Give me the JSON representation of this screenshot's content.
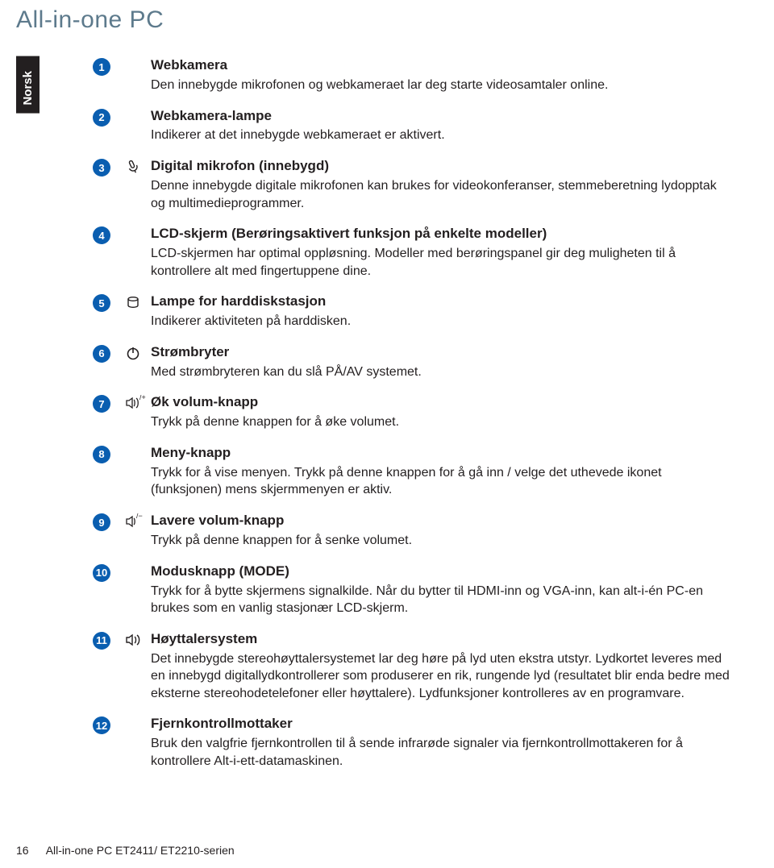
{
  "brand": "All-in-one PC",
  "side_tab": "Norsk",
  "accent_color": "#0a5eb0",
  "brand_color": "#5d7a8c",
  "items": [
    {
      "num": "1",
      "icon": "",
      "title": "Webkamera",
      "desc": "Den innebygde mikrofonen og webkameraet lar deg starte videosamtaler online."
    },
    {
      "num": "2",
      "icon": "",
      "title": "Webkamera-lampe",
      "desc": "Indikerer at det innebygde webkameraet er aktivert."
    },
    {
      "num": "3",
      "icon": "mic",
      "title": "Digital mikrofon (innebygd)",
      "desc": "Denne innebygde digitale mikrofonen kan brukes for videokonferanser, stemmeberetning lydopptak og multimedieprogrammer."
    },
    {
      "num": "4",
      "icon": "",
      "title": "LCD-skjerm (Berøringsaktivert funksjon på enkelte modeller)",
      "desc": "LCD-skjermen har optimal oppløsning. Modeller med berøringspanel gir deg muligheten til å kontrollere alt med fingertuppene dine."
    },
    {
      "num": "5",
      "icon": "hdd",
      "title": "Lampe for harddiskstasjon",
      "desc": "Indikerer aktiviteten på harddisken."
    },
    {
      "num": "6",
      "icon": "power",
      "title": "Strømbryter",
      "desc": "Med strømbryteren kan du slå PÅ/AV systemet."
    },
    {
      "num": "7",
      "icon": "volup",
      "title": "Øk volum-knapp",
      "desc": "Trykk på denne knappen for å øke volumet."
    },
    {
      "num": "8",
      "icon": "",
      "title": "Meny-knapp",
      "desc": "Trykk for å vise menyen. Trykk på denne knappen for å gå inn / velge det uthevede ikonet (funksjonen) mens skjermmenyen er aktiv."
    },
    {
      "num": "9",
      "icon": "voldown",
      "title": "Lavere volum-knapp",
      "desc": "Trykk på denne knappen for å senke volumet."
    },
    {
      "num": "10",
      "icon": "",
      "title": "Modusknapp (MODE)",
      "desc": "Trykk for å bytte skjermens signalkilde. Når du bytter til HDMI-inn og VGA-inn, kan alt-i-én PC-en brukes som en vanlig stasjonær LCD-skjerm."
    },
    {
      "num": "11",
      "icon": "speaker",
      "title": "Høyttalersystem",
      "desc": "Det innebygde stereohøyttalersystemet lar deg høre på lyd uten ekstra utstyr. Lydkortet leveres med en innebygd digitallydkontrollerer som produserer en rik, rungende lyd (resultatet blir enda bedre med eksterne stereohodetelefoner eller høyttalere). Lydfunksjoner kontrolleres av en programvare."
    },
    {
      "num": "12",
      "icon": "",
      "title": "Fjernkontrollmottaker",
      "desc": "Bruk den valgfrie fjernkontrollen til å sende infrarøde signaler via fjernkontrollmottakeren for å kontrollere Alt-i-ett-datamaskinen."
    }
  ],
  "footer": {
    "page": "16",
    "model": "All-in-one PC ET2411/ ET2210-serien"
  }
}
